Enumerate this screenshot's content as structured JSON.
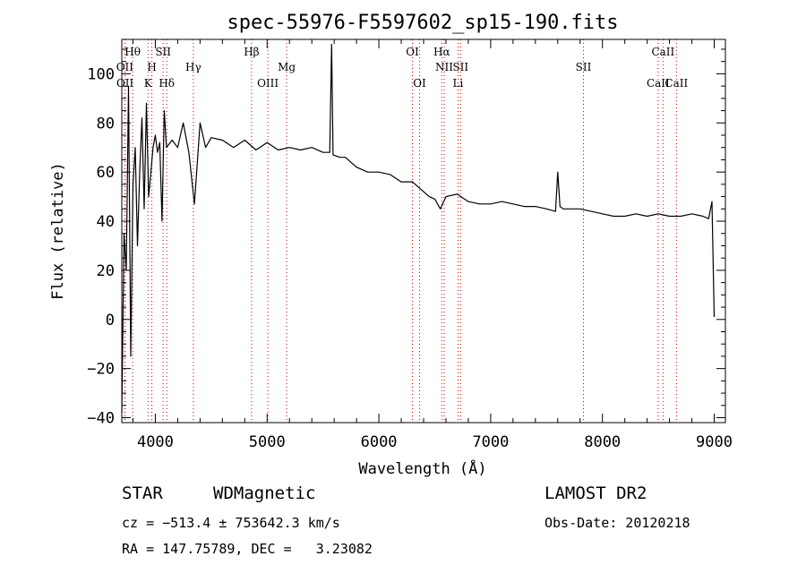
{
  "chart_data": {
    "type": "line",
    "title": "spec-55976-F5597602_sp15-190.fits",
    "xlabel": "Wavelength (Å)",
    "ylabel": "Flux (relative)",
    "xlim": [
      3700,
      9100
    ],
    "ylim": [
      -42,
      114
    ],
    "xticks": [
      4000,
      5000,
      6000,
      7000,
      8000,
      9000
    ],
    "yticks": [
      -40,
      -20,
      0,
      20,
      40,
      60,
      80,
      100
    ],
    "grid": false,
    "series": [
      {
        "x": [
          3700,
          3720,
          3740,
          3760,
          3780,
          3800,
          3820,
          3840,
          3860,
          3880,
          3900,
          3920,
          3940,
          3960,
          3980,
          4000,
          4020,
          4040,
          4060,
          4080,
          4100,
          4150,
          4200,
          4250,
          4300,
          4350,
          4400,
          4450,
          4500,
          4600,
          4700,
          4800,
          4900,
          5000,
          5100,
          5200,
          5300,
          5400,
          5500,
          5560,
          5577,
          5590,
          5650,
          5700,
          5800,
          5900,
          6000,
          6100,
          6200,
          6300,
          6400,
          6450,
          6500,
          6550,
          6600,
          6700,
          6800,
          6900,
          7000,
          7100,
          7200,
          7300,
          7400,
          7500,
          7580,
          7600,
          7620,
          7650,
          7700,
          7800,
          7900,
          8000,
          8100,
          8200,
          8300,
          8400,
          8500,
          8600,
          8700,
          8800,
          8900,
          8950,
          8980,
          9000
        ],
        "y": [
          -38,
          35,
          20,
          95,
          -15,
          55,
          70,
          30,
          60,
          82,
          45,
          88,
          50,
          60,
          70,
          75,
          68,
          72,
          40,
          85,
          70,
          73,
          70,
          80,
          68,
          47,
          80,
          70,
          74,
          73,
          70,
          73,
          69,
          72,
          69,
          70,
          69,
          70,
          68,
          68,
          112,
          67,
          66,
          66,
          62,
          60,
          60,
          59,
          56,
          56,
          52,
          50,
          49,
          45,
          50,
          51,
          48,
          47,
          47,
          48,
          47,
          46,
          46,
          45,
          44,
          60,
          46,
          45,
          45,
          45,
          44,
          43,
          42,
          42,
          43,
          42,
          43,
          42,
          42,
          43,
          42,
          41,
          48,
          1
        ]
      }
    ],
    "spectral_lines": [
      {
        "label": "Hθ",
        "x": 3797,
        "row": 0
      },
      {
        "label": "OII",
        "x": 3727,
        "row": 1
      },
      {
        "label": "OII",
        "x": 3729,
        "row": 2
      },
      {
        "label": "SII",
        "x": 4070,
        "row": 0
      },
      {
        "label": "H",
        "x": 3969,
        "row": 1
      },
      {
        "label": "K",
        "x": 3934,
        "row": 2
      },
      {
        "label": "Hδ",
        "x": 4102,
        "row": 2
      },
      {
        "label": "Hγ",
        "x": 4340,
        "row": 1
      },
      {
        "label": "Hβ",
        "x": 4861,
        "row": 0
      },
      {
        "label": "OIII",
        "x": 5007,
        "row": 2
      },
      {
        "label": "Mg",
        "x": 5175,
        "row": 1
      },
      {
        "label": "OI",
        "x": 6300,
        "row": 0
      },
      {
        "label": "OI",
        "x": 6364,
        "row": 2
      },
      {
        "label": "Hα",
        "x": 6563,
        "row": 0
      },
      {
        "label": "NII",
        "x": 6584,
        "row": 1
      },
      {
        "label": "Li",
        "x": 6708,
        "row": 2
      },
      {
        "label": "SII",
        "x": 6731,
        "row": 1
      },
      {
        "label": "SII",
        "x": 7830,
        "row": 1
      },
      {
        "label": "CaII",
        "x": 8542,
        "row": 0
      },
      {
        "label": "CaII",
        "x": 8498,
        "row": 2
      },
      {
        "label": "CaII",
        "x": 8662,
        "row": 2
      }
    ]
  },
  "info": {
    "class": "STAR",
    "subclass": "WDMagnetic",
    "survey": "LAMOST DR2",
    "cz": "cz = −513.4 ± 753642.3 km/s",
    "obs_date": "Obs-Date: 20120218",
    "radec": "RA = 147.75789, DEC =   3.23082"
  },
  "colors": {
    "line": "#000000",
    "marker": "#cc0000",
    "background": "#ffffff"
  }
}
